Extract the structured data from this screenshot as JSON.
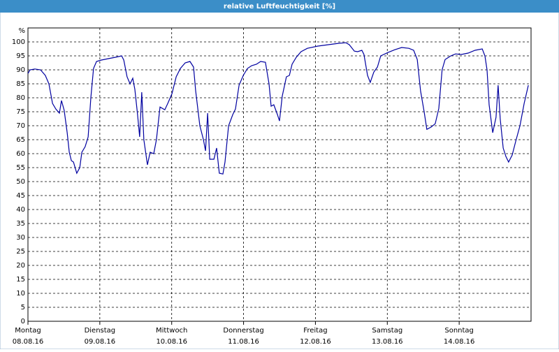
{
  "chart_data": {
    "type": "line",
    "title": "relative Luftfeuchtigkeit [%]",
    "ylabel": "%",
    "x": [
      0,
      0.7,
      2.3,
      4.2,
      5.8,
      7,
      8.2,
      9.3,
      10.5,
      11.2,
      12.1,
      13.1,
      13.8,
      14.5,
      15.2,
      16.3,
      17.3,
      18,
      19.1,
      20.1,
      21,
      21.9,
      22.9,
      24.5,
      26.8,
      29.2,
      31.3,
      32,
      33.1,
      34.1,
      35,
      35.7,
      36.6,
      37.3,
      38,
      38.7,
      39.9,
      40.8,
      42,
      42.9,
      44.1,
      45.7,
      46.7,
      48.1,
      49.5,
      50.9,
      52.5,
      54.1,
      55.3,
      56,
      57.4,
      58.6,
      59.3,
      60,
      60.7,
      62.1,
      63,
      63.9,
      65.1,
      65.8,
      67,
      68.4,
      69.3,
      70.5,
      71.9,
      73.3,
      74.7,
      76.3,
      77.7,
      79.3,
      80.5,
      81.2,
      82.1,
      83.3,
      84,
      84.9,
      86.3,
      87.3,
      88.2,
      89.6,
      91.2,
      93.3,
      96.8,
      100.3,
      103.8,
      106.2,
      107.3,
      109,
      110.1,
      111.5,
      112.2,
      113.4,
      114.3,
      115.5,
      116.7,
      117.8,
      120.2,
      122.5,
      124.8,
      127.2,
      128.8,
      130,
      131.1,
      132.3,
      133.2,
      134.6,
      136,
      137.2,
      138.3,
      139.3,
      141.2,
      142.8,
      144.7,
      147,
      149.3,
      151.7,
      152.6,
      153.3,
      154,
      155.2,
      156.3,
      157,
      157.7,
      158.7,
      159.6,
      160.5,
      161.7,
      162.9,
      164.3,
      165.7,
      167.1
    ],
    "series": [
      {
        "color": "#0000a0",
        "values": [
          88.7,
          90,
          90.3,
          90,
          88,
          85,
          78,
          76,
          74.5,
          79,
          75.5,
          67.5,
          60.5,
          57.5,
          57,
          53,
          55,
          60.5,
          62.5,
          66,
          80,
          90.5,
          93,
          93.5,
          94,
          94.5,
          95,
          93.5,
          87.5,
          85,
          87,
          83,
          74,
          66,
          82,
          65,
          56,
          60.5,
          60,
          65,
          76.7,
          75.7,
          78,
          81.5,
          87.5,
          90.5,
          92.5,
          93,
          91,
          82.5,
          70,
          65,
          61,
          74.5,
          58,
          58,
          62,
          53,
          52.7,
          57,
          70,
          74,
          76,
          84.5,
          88,
          90.5,
          91.5,
          92,
          93,
          92.7,
          85,
          77,
          77.5,
          74,
          71.7,
          80.5,
          87.5,
          88,
          92,
          94.5,
          96.5,
          97.7,
          98.5,
          99,
          99.5,
          99.7,
          99,
          96.7,
          96.5,
          97,
          95.5,
          88,
          85.5,
          89.2,
          91,
          95,
          96.2,
          97.2,
          98,
          97.7,
          97,
          93.7,
          82.5,
          75,
          68.7,
          69.5,
          70.7,
          76.2,
          90,
          93.7,
          95,
          95.7,
          95.5,
          96,
          97,
          97.5,
          95,
          90,
          77.5,
          67.5,
          73,
          84.5,
          72.5,
          62,
          59,
          57,
          59.5,
          64.5,
          70,
          78,
          84.5
        ]
      }
    ],
    "xlim": [
      0,
      168
    ],
    "xticks": [
      {
        "value": 0,
        "label": "Montag",
        "date": "08.08.16"
      },
      {
        "value": 24,
        "label": "Dienstag",
        "date": "09.08.16"
      },
      {
        "value": 48,
        "label": "Mittwoch",
        "date": "10.08.16"
      },
      {
        "value": 72,
        "label": "Donnerstag",
        "date": "11.08.16"
      },
      {
        "value": 96,
        "label": "Freitag",
        "date": "12.08.16"
      },
      {
        "value": 120,
        "label": "Samstag",
        "date": "13.08.16"
      },
      {
        "value": 144,
        "label": "Sonntag",
        "date": "14.08.16"
      }
    ],
    "ylim": [
      0,
      105
    ],
    "yticks": [
      0,
      5,
      10,
      15,
      20,
      25,
      30,
      35,
      40,
      45,
      50,
      55,
      60,
      65,
      70,
      75,
      80,
      85,
      90,
      95,
      100
    ],
    "grid": true
  }
}
